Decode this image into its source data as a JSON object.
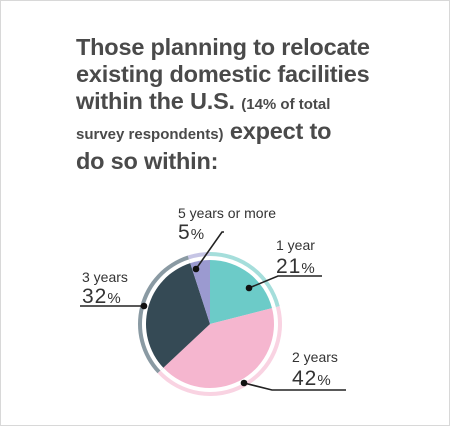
{
  "title": {
    "line1": "Those planning to relocate",
    "line2": "existing domestic facilities",
    "line3a": "within the U.S.",
    "line3b": "(14% of total",
    "line4a": "survey respondents)",
    "line4b": "expect to",
    "line5": "do so within:"
  },
  "colors": {
    "one_year": "#6ccbc8",
    "two_years": "#f5b6cf",
    "three_years": "#354a55",
    "five_plus": "#9b9ad0",
    "ring_one": "#a5dedb",
    "ring_two": "#f9d3e2",
    "ring_three": "#8a9aa3",
    "ring_five": "#c6c5e5"
  },
  "chart_data": {
    "type": "pie",
    "slices": [
      {
        "label": "1 year",
        "value": 21,
        "display": "21",
        "unit": "%"
      },
      {
        "label": "2 years",
        "value": 42,
        "display": "42",
        "unit": "%"
      },
      {
        "label": "3 years",
        "value": 32,
        "display": "32",
        "unit": "%"
      },
      {
        "label": "5 years or more",
        "value": 5,
        "display": "5",
        "unit": "%"
      }
    ]
  }
}
